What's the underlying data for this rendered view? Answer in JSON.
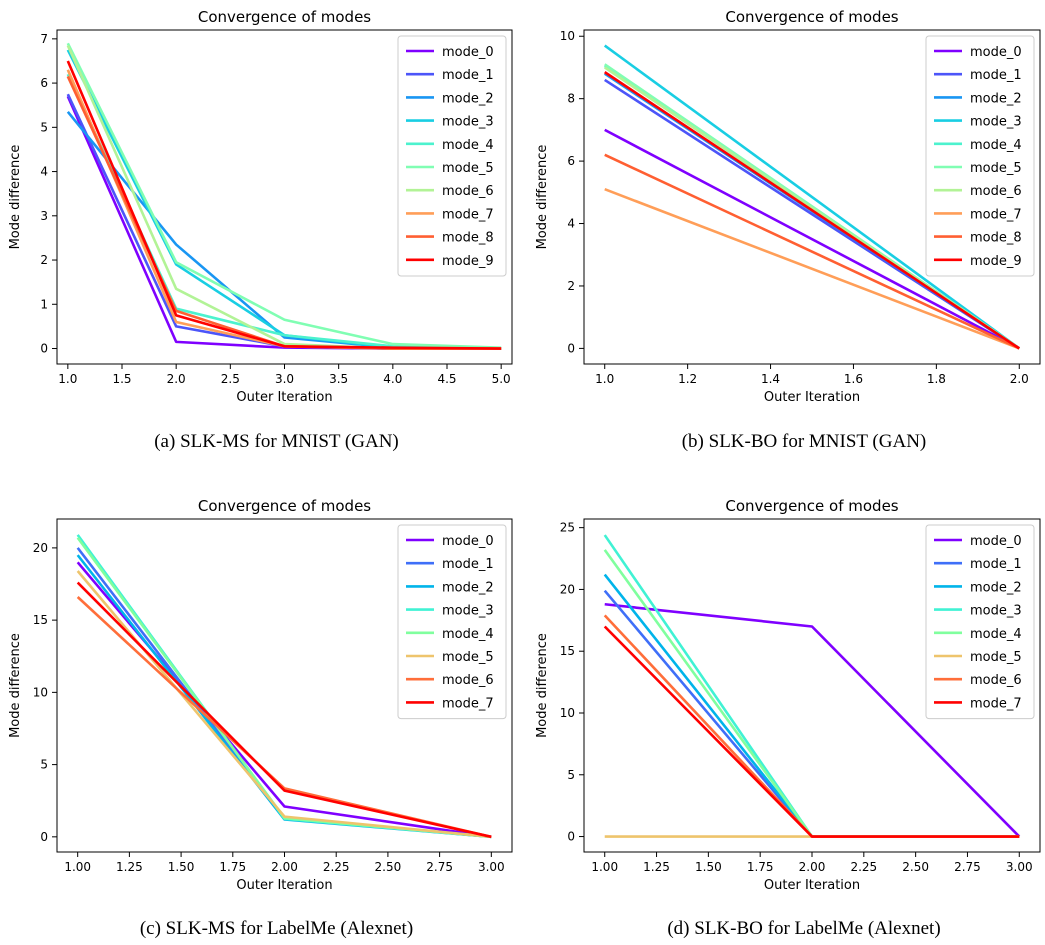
{
  "chart_data": [
    {
      "type": "line",
      "title": "Convergence of modes",
      "xlabel": "Outer Iteration",
      "ylabel": "Mode difference",
      "caption": "(a) SLK-MS for MNIST (GAN)",
      "xlim": [
        0.9,
        5.1
      ],
      "ylim": [
        -0.35,
        7.2
      ],
      "xticks": [
        1.0,
        1.5,
        2.0,
        2.5,
        3.0,
        3.5,
        4.0,
        4.5,
        5.0
      ],
      "xtick_labels": [
        "1.0",
        "1.5",
        "2.0",
        "2.5",
        "3.0",
        "3.5",
        "4.0",
        "4.5",
        "5.0"
      ],
      "yticks": [
        0,
        1,
        2,
        3,
        4,
        5,
        6,
        7
      ],
      "ytick_labels": [
        "0",
        "1",
        "2",
        "3",
        "4",
        "5",
        "6",
        "7"
      ],
      "legend": "top-right",
      "grid": false,
      "x": [
        1,
        2,
        3,
        4,
        5
      ],
      "series": [
        {
          "name": "mode_0",
          "color": "#7f00ff",
          "values": [
            5.7,
            0.15,
            0.02,
            0.0,
            0.0
          ]
        },
        {
          "name": "mode_1",
          "color": "#4c55f9",
          "values": [
            5.75,
            0.5,
            0.05,
            0.0,
            0.0
          ]
        },
        {
          "name": "mode_2",
          "color": "#1996f3",
          "values": [
            5.35,
            2.35,
            0.25,
            0.02,
            0.0
          ]
        },
        {
          "name": "mode_3",
          "color": "#19cee3",
          "values": [
            6.75,
            1.9,
            0.3,
            0.02,
            0.0
          ]
        },
        {
          "name": "mode_4",
          "color": "#4cf2ce",
          "values": [
            6.2,
            0.9,
            0.3,
            0.05,
            0.0
          ]
        },
        {
          "name": "mode_5",
          "color": "#80feb3",
          "values": [
            6.9,
            1.95,
            0.65,
            0.1,
            0.02
          ]
        },
        {
          "name": "mode_6",
          "color": "#b2f396",
          "values": [
            6.85,
            1.35,
            0.1,
            0.0,
            0.0
          ]
        },
        {
          "name": "mode_7",
          "color": "#ff9e58",
          "values": [
            6.3,
            0.6,
            0.05,
            0.0,
            0.0
          ]
        },
        {
          "name": "mode_8",
          "color": "#ff5f32",
          "values": [
            6.15,
            0.85,
            0.05,
            0.0,
            0.0
          ]
        },
        {
          "name": "mode_9",
          "color": "#ff0000",
          "values": [
            6.5,
            0.75,
            0.05,
            0.02,
            0.0
          ]
        }
      ]
    },
    {
      "type": "line",
      "title": "Convergence of modes",
      "xlabel": "Outer Iteration",
      "ylabel": "Mode difference",
      "caption": "(b) SLK-BO for MNIST (GAN)",
      "xlim": [
        0.95,
        2.05
      ],
      "ylim": [
        -0.5,
        10.2
      ],
      "xticks": [
        1.0,
        1.2,
        1.4,
        1.6,
        1.8,
        2.0
      ],
      "xtick_labels": [
        "1.0",
        "1.2",
        "1.4",
        "1.6",
        "1.8",
        "2.0"
      ],
      "yticks": [
        0,
        2,
        4,
        6,
        8,
        10
      ],
      "ytick_labels": [
        "0",
        "2",
        "4",
        "6",
        "8",
        "10"
      ],
      "legend": "top-right",
      "grid": false,
      "x": [
        1,
        2
      ],
      "series": [
        {
          "name": "mode_0",
          "color": "#7f00ff",
          "values": [
            7.0,
            0.0
          ]
        },
        {
          "name": "mode_1",
          "color": "#4c55f9",
          "values": [
            8.6,
            0.0
          ]
        },
        {
          "name": "mode_2",
          "color": "#1996f3",
          "values": [
            8.8,
            0.0
          ]
        },
        {
          "name": "mode_3",
          "color": "#19cee3",
          "values": [
            9.7,
            0.0
          ]
        },
        {
          "name": "mode_4",
          "color": "#4cf2ce",
          "values": [
            9.05,
            0.0
          ]
        },
        {
          "name": "mode_5",
          "color": "#80feb3",
          "values": [
            9.1,
            0.0
          ]
        },
        {
          "name": "mode_6",
          "color": "#b2f396",
          "values": [
            9.0,
            0.0
          ]
        },
        {
          "name": "mode_7",
          "color": "#ff9e58",
          "values": [
            5.1,
            0.0
          ]
        },
        {
          "name": "mode_8",
          "color": "#ff5f32",
          "values": [
            6.2,
            0.0
          ]
        },
        {
          "name": "mode_9",
          "color": "#ff0000",
          "values": [
            8.85,
            0.0
          ]
        }
      ]
    },
    {
      "type": "line",
      "title": "Convergence of modes",
      "xlabel": "Outer Iteration",
      "ylabel": "Mode difference",
      "caption": "(c) SLK-MS for LabelMe (Alexnet)",
      "xlim": [
        0.9,
        3.1
      ],
      "ylim": [
        -1.05,
        22.0
      ],
      "xticks": [
        1.0,
        1.25,
        1.5,
        1.75,
        2.0,
        2.25,
        2.5,
        2.75,
        3.0
      ],
      "xtick_labels": [
        "1.00",
        "1.25",
        "1.50",
        "1.75",
        "2.00",
        "2.25",
        "2.50",
        "2.75",
        "3.00"
      ],
      "yticks": [
        0,
        5,
        10,
        15,
        20
      ],
      "ytick_labels": [
        "0",
        "5",
        "10",
        "15",
        "20"
      ],
      "legend": "top-right",
      "grid": false,
      "x": [
        1,
        2,
        3
      ],
      "series": [
        {
          "name": "mode_0",
          "color": "#7f00ff",
          "values": [
            19.0,
            2.1,
            0.0
          ]
        },
        {
          "name": "mode_1",
          "color": "#3f6ff8",
          "values": [
            20.0,
            1.3,
            0.0
          ]
        },
        {
          "name": "mode_2",
          "color": "#00b4ea",
          "values": [
            19.5,
            1.2,
            0.0
          ]
        },
        {
          "name": "mode_3",
          "color": "#40f2d4",
          "values": [
            20.9,
            1.25,
            0.0
          ]
        },
        {
          "name": "mode_4",
          "color": "#80ff9e",
          "values": [
            20.7,
            1.3,
            0.0
          ]
        },
        {
          "name": "mode_5",
          "color": "#eec46c",
          "values": [
            18.4,
            1.4,
            0.0
          ]
        },
        {
          "name": "mode_6",
          "color": "#ff6e3a",
          "values": [
            16.6,
            3.35,
            0.0
          ]
        },
        {
          "name": "mode_7",
          "color": "#ff0000",
          "values": [
            17.6,
            3.2,
            0.0
          ]
        }
      ]
    },
    {
      "type": "line",
      "title": "Convergence of modes",
      "xlabel": "Outer Iteration",
      "ylabel": "Mode difference",
      "caption": "(d) SLK-BO for LabelMe (Alexnet)",
      "xlim": [
        0.9,
        3.1
      ],
      "ylim": [
        -1.25,
        25.7
      ],
      "xticks": [
        1.0,
        1.25,
        1.5,
        1.75,
        2.0,
        2.25,
        2.5,
        2.75,
        3.0
      ],
      "xtick_labels": [
        "1.00",
        "1.25",
        "1.50",
        "1.75",
        "2.00",
        "2.25",
        "2.50",
        "2.75",
        "3.00"
      ],
      "yticks": [
        0,
        5,
        10,
        15,
        20,
        25
      ],
      "ytick_labels": [
        "0",
        "5",
        "10",
        "15",
        "20",
        "25"
      ],
      "legend": "top-right",
      "grid": false,
      "x": [
        1,
        2,
        3
      ],
      "series": [
        {
          "name": "mode_0",
          "color": "#7f00ff",
          "values": [
            18.8,
            17.0,
            0.0
          ]
        },
        {
          "name": "mode_1",
          "color": "#3f6ff8",
          "values": [
            19.9,
            0.0,
            0.0
          ]
        },
        {
          "name": "mode_2",
          "color": "#00b4ea",
          "values": [
            21.2,
            0.0,
            0.0
          ]
        },
        {
          "name": "mode_3",
          "color": "#40f2d4",
          "values": [
            24.4,
            0.0,
            0.0
          ]
        },
        {
          "name": "mode_4",
          "color": "#80ff9e",
          "values": [
            23.2,
            0.0,
            0.0
          ]
        },
        {
          "name": "mode_5",
          "color": "#eec46c",
          "values": [
            0.0,
            0.0,
            0.0
          ]
        },
        {
          "name": "mode_6",
          "color": "#ff6e3a",
          "values": [
            17.9,
            0.0,
            0.0
          ]
        },
        {
          "name": "mode_7",
          "color": "#ff0000",
          "values": [
            17.0,
            0.0,
            0.0
          ]
        }
      ]
    }
  ]
}
